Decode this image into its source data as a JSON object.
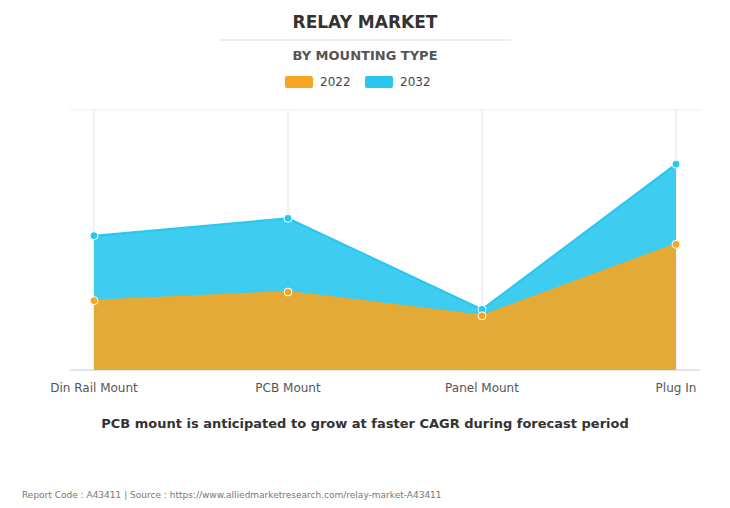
{
  "chart_data": {
    "type": "area",
    "title": "RELAY MARKET",
    "subtitle": "BY MOUNTING TYPE",
    "categories": [
      "Din Rail Mount",
      "PCB Mount",
      "Panel Mount",
      "Plug In"
    ],
    "series": [
      {
        "name": "2022",
        "color": "#F5A623",
        "values": [
          3.2,
          3.6,
          2.5,
          5.8
        ]
      },
      {
        "name": "2032",
        "color": "#29C6F0",
        "values": [
          6.2,
          7.0,
          2.8,
          9.5
        ]
      }
    ],
    "ylim": [
      0,
      12
    ],
    "grid": true,
    "tick_labels": "x",
    "marker": "circle",
    "annotations": [
      "PCB mount is anticipated to grow at faster CAGR during forecast period",
      "Report Code : A43411  |  Source : https://www.alliedmarketresearch.com/relay-market-A43411"
    ]
  }
}
